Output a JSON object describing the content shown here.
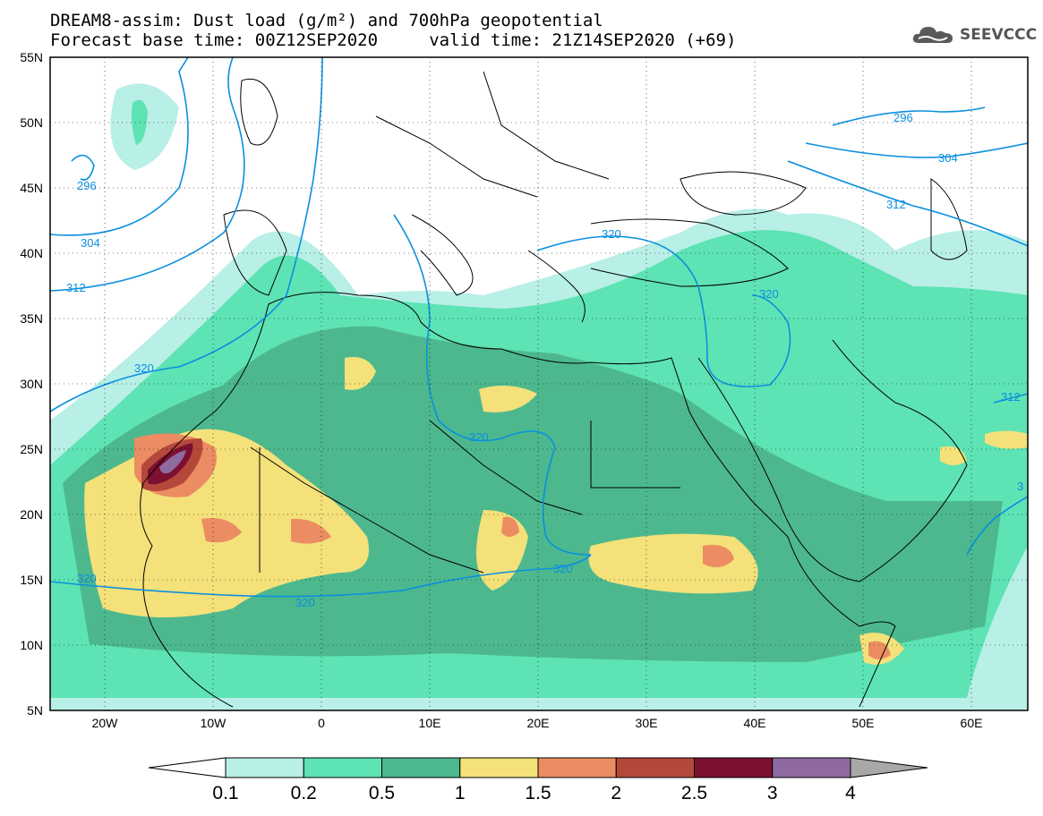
{
  "header": {
    "line1": "DREAM8-assim: Dust load (g/m²) and 700hPa geopotential",
    "line2": "Forecast base time: 00Z12SEP2020     valid time: 21Z14SEP2020 (+69)"
  },
  "logo": {
    "text": "SEEVCCC",
    "icon": "cloud-icon"
  },
  "map": {
    "lat_labels": [
      "55N",
      "50N",
      "45N",
      "40N",
      "35N",
      "30N",
      "25N",
      "20N",
      "15N",
      "10N",
      "5N"
    ],
    "lon_labels": [
      "20W",
      "10W",
      "0",
      "10E",
      "20E",
      "30E",
      "40E",
      "50E",
      "60E"
    ],
    "contour_labels": [
      "296",
      "304",
      "312",
      "296",
      "304",
      "312",
      "320",
      "320",
      "320",
      "320",
      "320",
      "320",
      "320",
      "312",
      "3"
    ]
  },
  "colorbar": {
    "ticks": [
      "0.1",
      "0.2",
      "0.5",
      "1",
      "1.5",
      "2",
      "2.5",
      "3",
      "4"
    ],
    "colors": [
      "#b8efe6",
      "#5ee3b4",
      "#4db88e",
      "#f4e17a",
      "#ec8c62",
      "#b4483b",
      "#7c1030",
      "#8e6aa0",
      "#a8a8a8"
    ],
    "under_color": "#ffffff"
  }
}
